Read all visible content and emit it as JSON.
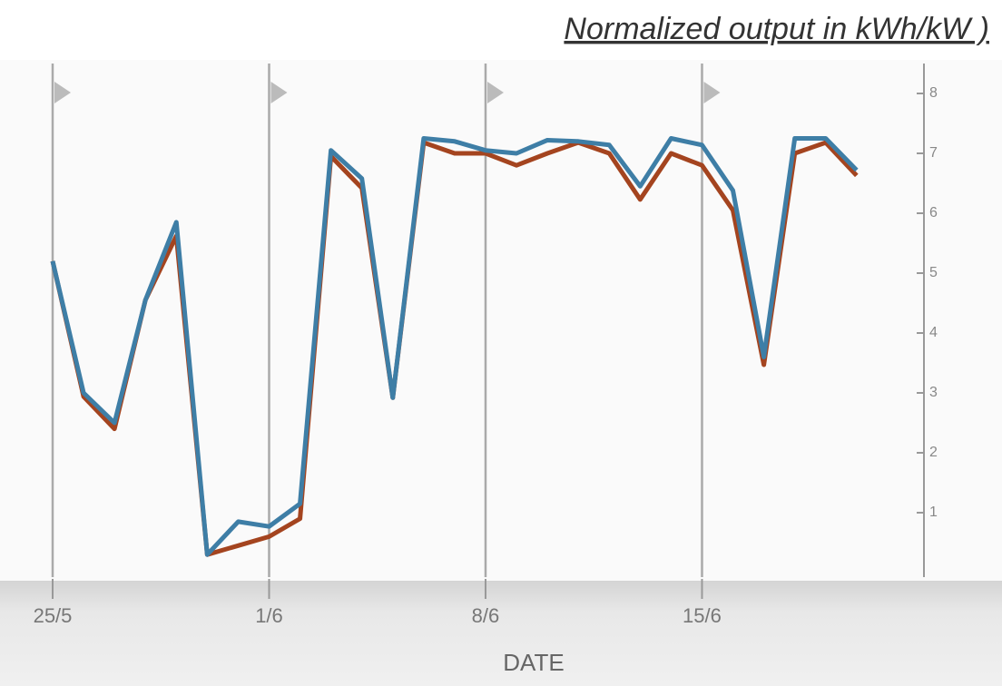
{
  "chart_data": {
    "type": "line",
    "title": "Normalized output in kWh/kW )",
    "x_label": "DATE",
    "categories": [
      "25/5",
      null,
      null,
      null,
      null,
      null,
      null,
      "1/6",
      null,
      null,
      null,
      null,
      null,
      null,
      "8/6",
      null,
      null,
      null,
      null,
      null,
      null,
      "15/6",
      null,
      null,
      null,
      null,
      null
    ],
    "series": [
      {
        "color": "#a4441f",
        "values": [
          5.2,
          2.94,
          2.4,
          4.55,
          5.62,
          0.3,
          0.45,
          0.6,
          0.9,
          6.95,
          6.42,
          2.92,
          7.18,
          7.0,
          7.0,
          6.8,
          7.0,
          7.18,
          7.0,
          6.23,
          7.0,
          6.8,
          6.05,
          3.47,
          7.0,
          7.18,
          6.63
        ]
      },
      {
        "color": "#3e7ea6",
        "values": [
          5.2,
          3.0,
          2.5,
          4.55,
          5.85,
          0.3,
          0.85,
          0.77,
          1.15,
          7.05,
          6.58,
          2.92,
          7.25,
          7.2,
          7.05,
          7.0,
          7.22,
          7.2,
          7.14,
          6.45,
          7.25,
          7.14,
          6.38,
          3.6,
          7.25,
          7.25,
          6.72
        ]
      }
    ],
    "ylim": [
      0,
      8.5
    ],
    "yticks": [
      1,
      2,
      3,
      4,
      5,
      6,
      7,
      8
    ],
    "grid": true
  }
}
